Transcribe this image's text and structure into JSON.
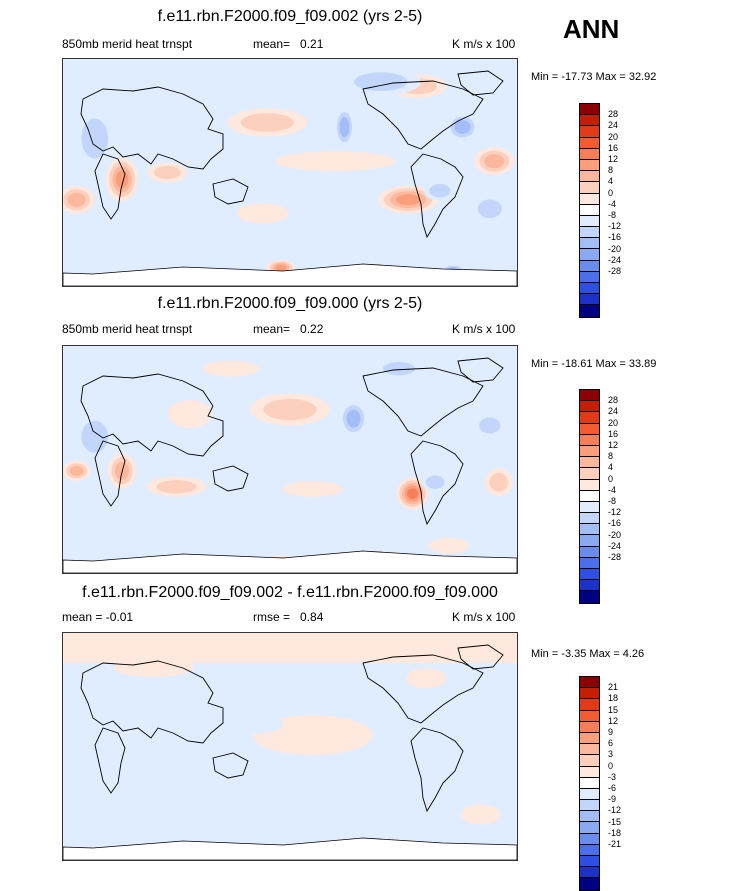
{
  "season": "ANN",
  "colors": {
    "levels_pos": [
      "#ffe8de",
      "#fdd0bd",
      "#fcb89d",
      "#fa9e7c",
      "#f87e59",
      "#f35b33",
      "#e03a16",
      "#c41e06",
      "#8b0000"
    ],
    "levels_neg": [
      "#e0ecff",
      "#c2d6fb",
      "#a3bdf7",
      "#8aa9f3",
      "#6a8cef",
      "#4c6fe9",
      "#2f4fe0",
      "#1c32c7",
      "#000080"
    ],
    "zero": "#ffffff"
  },
  "panels": [
    {
      "title": "f.e11.rbn.F2000.f09_f09.002 (yrs 2-5)",
      "left_label": "850mb merid heat trnspt",
      "mean_label": "mean=",
      "mean_value": "0.21",
      "units": "K m/s x 100",
      "min_label": "Min =",
      "min_value": "-17.73",
      "max_label": "Max =",
      "max_value": "32.92",
      "colorbar_labels": [
        "28",
        "24",
        "20",
        "16",
        "12",
        "8",
        "4",
        "0",
        "-4",
        "-8",
        "-12",
        "-16",
        "-20",
        "-24",
        "-28"
      ]
    },
    {
      "title": "f.e11.rbn.F2000.f09_f09.000 (yrs 2-5)",
      "left_label": "850mb merid heat trnspt",
      "mean_label": "mean=",
      "mean_value": "0.22",
      "units": "K m/s x 100",
      "min_label": "Min =",
      "min_value": "-18.61",
      "max_label": "Max =",
      "max_value": "33.89",
      "colorbar_labels": [
        "28",
        "24",
        "20",
        "16",
        "12",
        "8",
        "4",
        "0",
        "-4",
        "-8",
        "-12",
        "-16",
        "-20",
        "-24",
        "-28"
      ]
    },
    {
      "title": "f.e11.rbn.F2000.f09_f09.002 - f.e11.rbn.F2000.f09_f09.000",
      "left_label": "mean =  -0.01",
      "mean_label": "rmse =",
      "mean_value": "0.84",
      "units": "K m/s x 100",
      "min_label": "Min =",
      "min_value": "-3.35",
      "max_label": "Max =",
      "max_value": "4.26",
      "colorbar_labels": [
        "21",
        "18",
        "15",
        "12",
        "9",
        "6",
        "3",
        "0",
        "-3",
        "-6",
        "-9",
        "-12",
        "-15",
        "-18",
        "-21"
      ]
    }
  ]
}
